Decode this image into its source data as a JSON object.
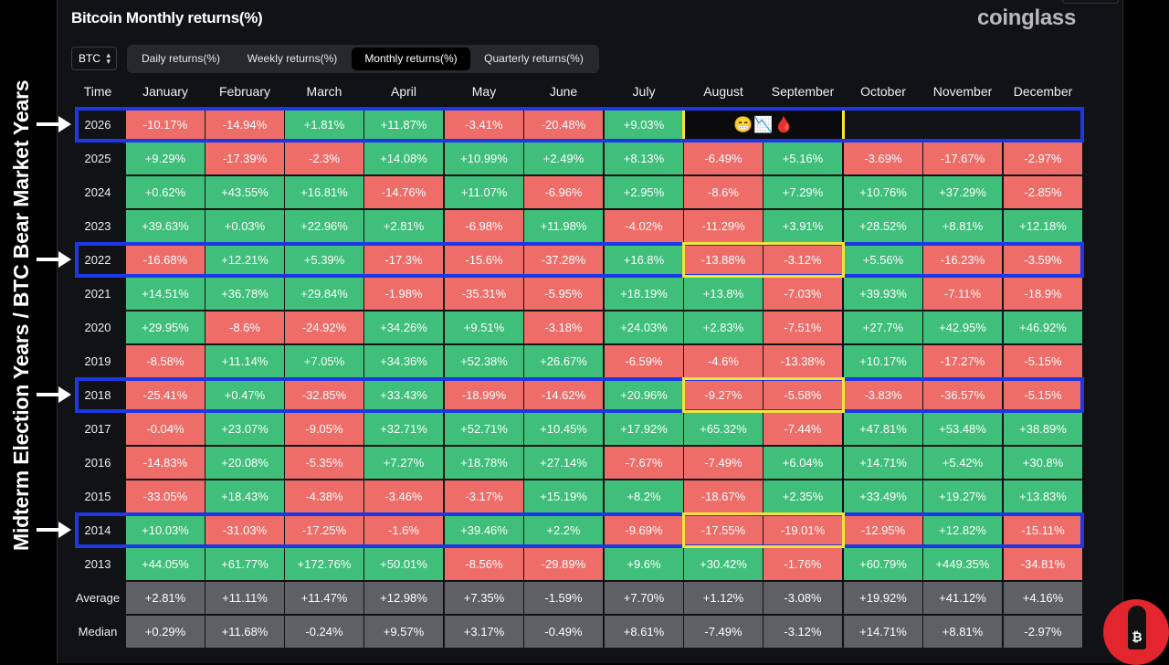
{
  "page": {
    "title": "Bitcoin Monthly returns(%)",
    "brand": "coinglass",
    "side_label": "Midterm Election Years / BTC Bear Market Years"
  },
  "controls": {
    "coin_select": "BTC",
    "tabs": [
      {
        "label": "Daily returns(%)",
        "active": false
      },
      {
        "label": "Weekly returns(%)",
        "active": false
      },
      {
        "label": "Monthly returns(%)",
        "active": true
      },
      {
        "label": "Quarterly returns(%)",
        "active": false
      }
    ]
  },
  "table": {
    "headers": [
      "Time",
      "January",
      "February",
      "March",
      "April",
      "May",
      "June",
      "July",
      "August",
      "September",
      "October",
      "November",
      "December"
    ],
    "rows": [
      {
        "year": "2026",
        "cells": [
          "-10.17%",
          "-14.94%",
          "+1.81%",
          "+11.87%",
          "-3.41%",
          "-20.48%",
          "+9.03%",
          "",
          "",
          "",
          "",
          ""
        ]
      },
      {
        "year": "2025",
        "cells": [
          "+9.29%",
          "-17.39%",
          "-2.3%",
          "+14.08%",
          "+10.99%",
          "+2.49%",
          "+8.13%",
          "-6.49%",
          "+5.16%",
          "-3.69%",
          "-17.67%",
          "-2.97%"
        ]
      },
      {
        "year": "2024",
        "cells": [
          "+0.62%",
          "+43.55%",
          "+16.81%",
          "-14.76%",
          "+11.07%",
          "-6.96%",
          "+2.95%",
          "-8.6%",
          "+7.29%",
          "+10.76%",
          "+37.29%",
          "-2.85%"
        ]
      },
      {
        "year": "2023",
        "cells": [
          "+39.63%",
          "+0.03%",
          "+22.96%",
          "+2.81%",
          "-6.98%",
          "+11.98%",
          "-4.02%",
          "-11.29%",
          "+3.91%",
          "+28.52%",
          "+8.81%",
          "+12.18%"
        ]
      },
      {
        "year": "2022",
        "cells": [
          "-16.68%",
          "+12.21%",
          "+5.39%",
          "-17.3%",
          "-15.6%",
          "-37.28%",
          "+16.8%",
          "-13.88%",
          "-3.12%",
          "+5.56%",
          "-16.23%",
          "-3.59%"
        ]
      },
      {
        "year": "2021",
        "cells": [
          "+14.51%",
          "+36.78%",
          "+29.84%",
          "-1.98%",
          "-35.31%",
          "-5.95%",
          "+18.19%",
          "+13.8%",
          "-7.03%",
          "+39.93%",
          "-7.11%",
          "-18.9%"
        ]
      },
      {
        "year": "2020",
        "cells": [
          "+29.95%",
          "-8.6%",
          "-24.92%",
          "+34.26%",
          "+9.51%",
          "-3.18%",
          "+24.03%",
          "+2.83%",
          "-7.51%",
          "+27.7%",
          "+42.95%",
          "+46.92%"
        ]
      },
      {
        "year": "2019",
        "cells": [
          "-8.58%",
          "+11.14%",
          "+7.05%",
          "+34.36%",
          "+52.38%",
          "+26.67%",
          "-6.59%",
          "-4.6%",
          "-13.38%",
          "+10.17%",
          "-17.27%",
          "-5.15%"
        ]
      },
      {
        "year": "2018",
        "cells": [
          "-25.41%",
          "+0.47%",
          "-32.85%",
          "+33.43%",
          "-18.99%",
          "-14.62%",
          "+20.96%",
          "-9.27%",
          "-5.58%",
          "-3.83%",
          "-36.57%",
          "-5.15%"
        ]
      },
      {
        "year": "2017",
        "cells": [
          "-0.04%",
          "+23.07%",
          "-9.05%",
          "+32.71%",
          "+52.71%",
          "+10.45%",
          "+17.92%",
          "+65.32%",
          "-7.44%",
          "+47.81%",
          "+53.48%",
          "+38.89%"
        ]
      },
      {
        "year": "2016",
        "cells": [
          "-14.83%",
          "+20.08%",
          "-5.35%",
          "+7.27%",
          "+18.78%",
          "+27.14%",
          "-7.67%",
          "-7.49%",
          "+6.04%",
          "+14.71%",
          "+5.42%",
          "+30.8%"
        ]
      },
      {
        "year": "2015",
        "cells": [
          "-33.05%",
          "+18.43%",
          "-4.38%",
          "-3.46%",
          "-3.17%",
          "+15.19%",
          "+8.2%",
          "-18.67%",
          "+2.35%",
          "+33.49%",
          "+19.27%",
          "+13.83%"
        ]
      },
      {
        "year": "2014",
        "cells": [
          "+10.03%",
          "-31.03%",
          "-17.25%",
          "-1.6%",
          "+39.46%",
          "+2.2%",
          "-9.69%",
          "-17.55%",
          "-19.01%",
          "-12.95%",
          "+12.82%",
          "-15.11%"
        ]
      },
      {
        "year": "2013",
        "cells": [
          "+44.05%",
          "+61.77%",
          "+172.76%",
          "+50.01%",
          "-8.56%",
          "-29.89%",
          "+9.6%",
          "+30.42%",
          "-1.76%",
          "+60.79%",
          "+449.35%",
          "-34.81%"
        ]
      },
      {
        "year": "Average",
        "summary": true,
        "cells": [
          "+2.81%",
          "+11.11%",
          "+11.47%",
          "+12.98%",
          "+7.35%",
          "-1.59%",
          "+7.70%",
          "+1.12%",
          "-3.08%",
          "+19.92%",
          "+41.12%",
          "+4.16%"
        ]
      },
      {
        "year": "Median",
        "summary": true,
        "cells": [
          "+0.29%",
          "+11.68%",
          "-0.24%",
          "+9.57%",
          "+3.17%",
          "-0.49%",
          "+8.61%",
          "-7.49%",
          "-3.12%",
          "+14.71%",
          "+8.81%",
          "-2.97%"
        ]
      }
    ]
  },
  "annotations": {
    "highlight_years": [
      "2026",
      "2022",
      "2018",
      "2014"
    ],
    "emoji": [
      "😁",
      "📉",
      "🩸"
    ],
    "colors": {
      "positive": "#3fbf7a",
      "negative": "#ee6d69",
      "summary": "#5f6066",
      "blue_box": "#1c37e6",
      "yellow_box": "#f5e23a"
    }
  }
}
